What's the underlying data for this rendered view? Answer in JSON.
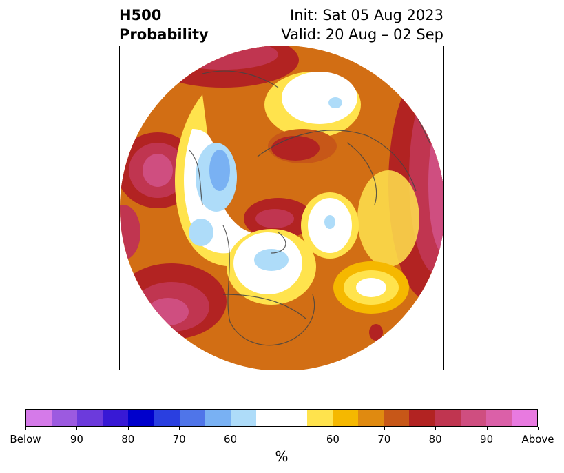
{
  "title": {
    "left_line1": "H500",
    "left_line2": "Probability",
    "right_line1": "Init: Sat 05 Aug 2023",
    "right_line2": "Valid: 20 Aug – 02 Sep"
  },
  "map": {
    "projection": "north-polar-stereographic",
    "features": [
      "coastlines",
      "country-borders",
      "us-state-borders"
    ],
    "below_colors": [
      "#d57ae9",
      "#9c5ae0",
      "#6c3adc",
      "#3819d5",
      "#0000cc",
      "#2a3fe0",
      "#4f75e9",
      "#79b1f3",
      "#aedcf9"
    ],
    "neutral_color": "#ffffff",
    "above_colors": [
      "#ffe34d",
      "#f5b800",
      "#e08a10",
      "#c75718",
      "#b22322",
      "#c03550",
      "#cf4e80",
      "#db60a8",
      "#e87ae0"
    ]
  },
  "colorbar": {
    "segments": [
      "#d57ae9",
      "#9c5ae0",
      "#6c3adc",
      "#3819d5",
      "#0000cc",
      "#2a3fe0",
      "#4f75e9",
      "#79b1f3",
      "#aedcf9",
      "#ffffff",
      "#ffffff",
      "#ffe34d",
      "#f5b800",
      "#e08a10",
      "#c75718",
      "#b22322",
      "#c03550",
      "#cf4e80",
      "#db60a8",
      "#e87ae0"
    ],
    "tick_labels": [
      "Below",
      "90",
      "80",
      "70",
      "60",
      "60",
      "70",
      "80",
      "90",
      "Above"
    ],
    "unit_label": "%"
  }
}
